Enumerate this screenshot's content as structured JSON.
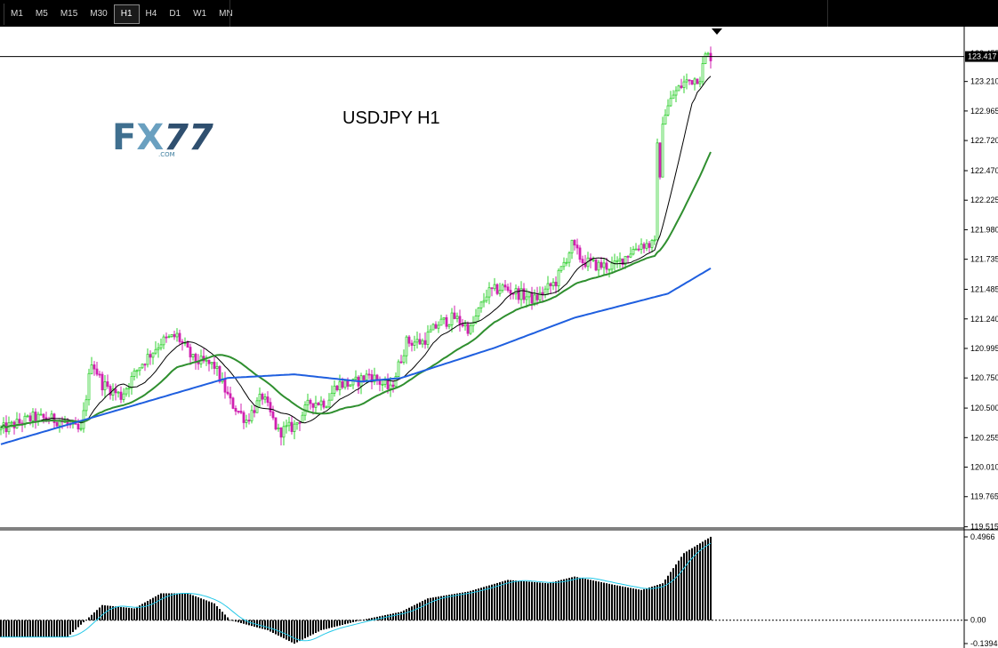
{
  "toolbar": {
    "timeframes": [
      "M1",
      "M5",
      "M15",
      "M30",
      "H1",
      "H4",
      "D1",
      "W1",
      "MN"
    ],
    "active": "H1"
  },
  "logo": {
    "mark": "FX77",
    "sub": ".COM",
    "colors": {
      "f": "#3f6f8f",
      "x": "#6aa0c0",
      "num": "#2f4f6f"
    }
  },
  "chart_data": {
    "type": "candlestick",
    "title": "USDJPY  H1",
    "price_axis": {
      "ticks": [
        "123.210",
        "122.965",
        "122.720",
        "122.470",
        "122.225",
        "121.980",
        "121.735",
        "121.485",
        "121.240",
        "120.995",
        "120.750",
        "120.500",
        "120.255",
        "120.010",
        "119.765",
        "119.515"
      ],
      "current_price_label": "123.417",
      "top_clipped_label": "123.455",
      "range": [
        119.505,
        123.65
      ]
    },
    "oscillator": {
      "ticks": [
        "0.4966",
        "0.00",
        "-0.1394"
      ],
      "range": [
        -0.1394,
        0.4966
      ],
      "zero_level": 0
    },
    "colors": {
      "bull": "#30d030",
      "bear": "#d020b0",
      "ma_fast": "#000000",
      "ma_mid": "#2f8f2f",
      "ma_slow": "#1f5fdf",
      "signal": "#22c8e8",
      "hist": "#000000"
    },
    "trend_anchors": [
      [
        0,
        120.32
      ],
      [
        12,
        120.42
      ],
      [
        22,
        120.4
      ],
      [
        30,
        120.3
      ],
      [
        34,
        120.9
      ],
      [
        38,
        120.7
      ],
      [
        45,
        120.6
      ],
      [
        52,
        120.85
      ],
      [
        60,
        121.05
      ],
      [
        66,
        121.1
      ],
      [
        72,
        120.9
      ],
      [
        80,
        120.85
      ],
      [
        86,
        120.55
      ],
      [
        92,
        120.4
      ],
      [
        98,
        120.6
      ],
      [
        104,
        120.3
      ],
      [
        110,
        120.35
      ],
      [
        116,
        120.55
      ],
      [
        122,
        120.55
      ],
      [
        126,
        120.7
      ],
      [
        132,
        120.7
      ],
      [
        138,
        120.78
      ],
      [
        146,
        120.65
      ],
      [
        152,
        121.05
      ],
      [
        158,
        121.05
      ],
      [
        164,
        121.2
      ],
      [
        170,
        121.25
      ],
      [
        176,
        121.15
      ],
      [
        182,
        121.45
      ],
      [
        188,
        121.5
      ],
      [
        194,
        121.45
      ],
      [
        200,
        121.4
      ],
      [
        208,
        121.55
      ],
      [
        214,
        121.85
      ],
      [
        218,
        121.72
      ],
      [
        224,
        121.68
      ],
      [
        230,
        121.68
      ],
      [
        236,
        121.8
      ],
      [
        240,
        121.86
      ],
      [
        246,
        121.85
      ],
      [
        248,
        122.9
      ],
      [
        252,
        123.1
      ],
      [
        256,
        123.2
      ],
      [
        262,
        123.25
      ],
      [
        264,
        123.42
      ]
    ],
    "osc_anchors": [
      [
        0,
        -0.1
      ],
      [
        25,
        -0.1
      ],
      [
        38,
        0.09
      ],
      [
        50,
        0.07
      ],
      [
        60,
        0.16
      ],
      [
        70,
        0.16
      ],
      [
        80,
        0.1
      ],
      [
        86,
        0.0
      ],
      [
        100,
        -0.06
      ],
      [
        110,
        -0.14
      ],
      [
        120,
        -0.06
      ],
      [
        135,
        0.0
      ],
      [
        150,
        0.05
      ],
      [
        160,
        0.13
      ],
      [
        175,
        0.17
      ],
      [
        190,
        0.24
      ],
      [
        205,
        0.22
      ],
      [
        215,
        0.26
      ],
      [
        230,
        0.21
      ],
      [
        240,
        0.18
      ],
      [
        248,
        0.22
      ],
      [
        256,
        0.4
      ],
      [
        266,
        0.497
      ]
    ],
    "candle_count": 267
  }
}
